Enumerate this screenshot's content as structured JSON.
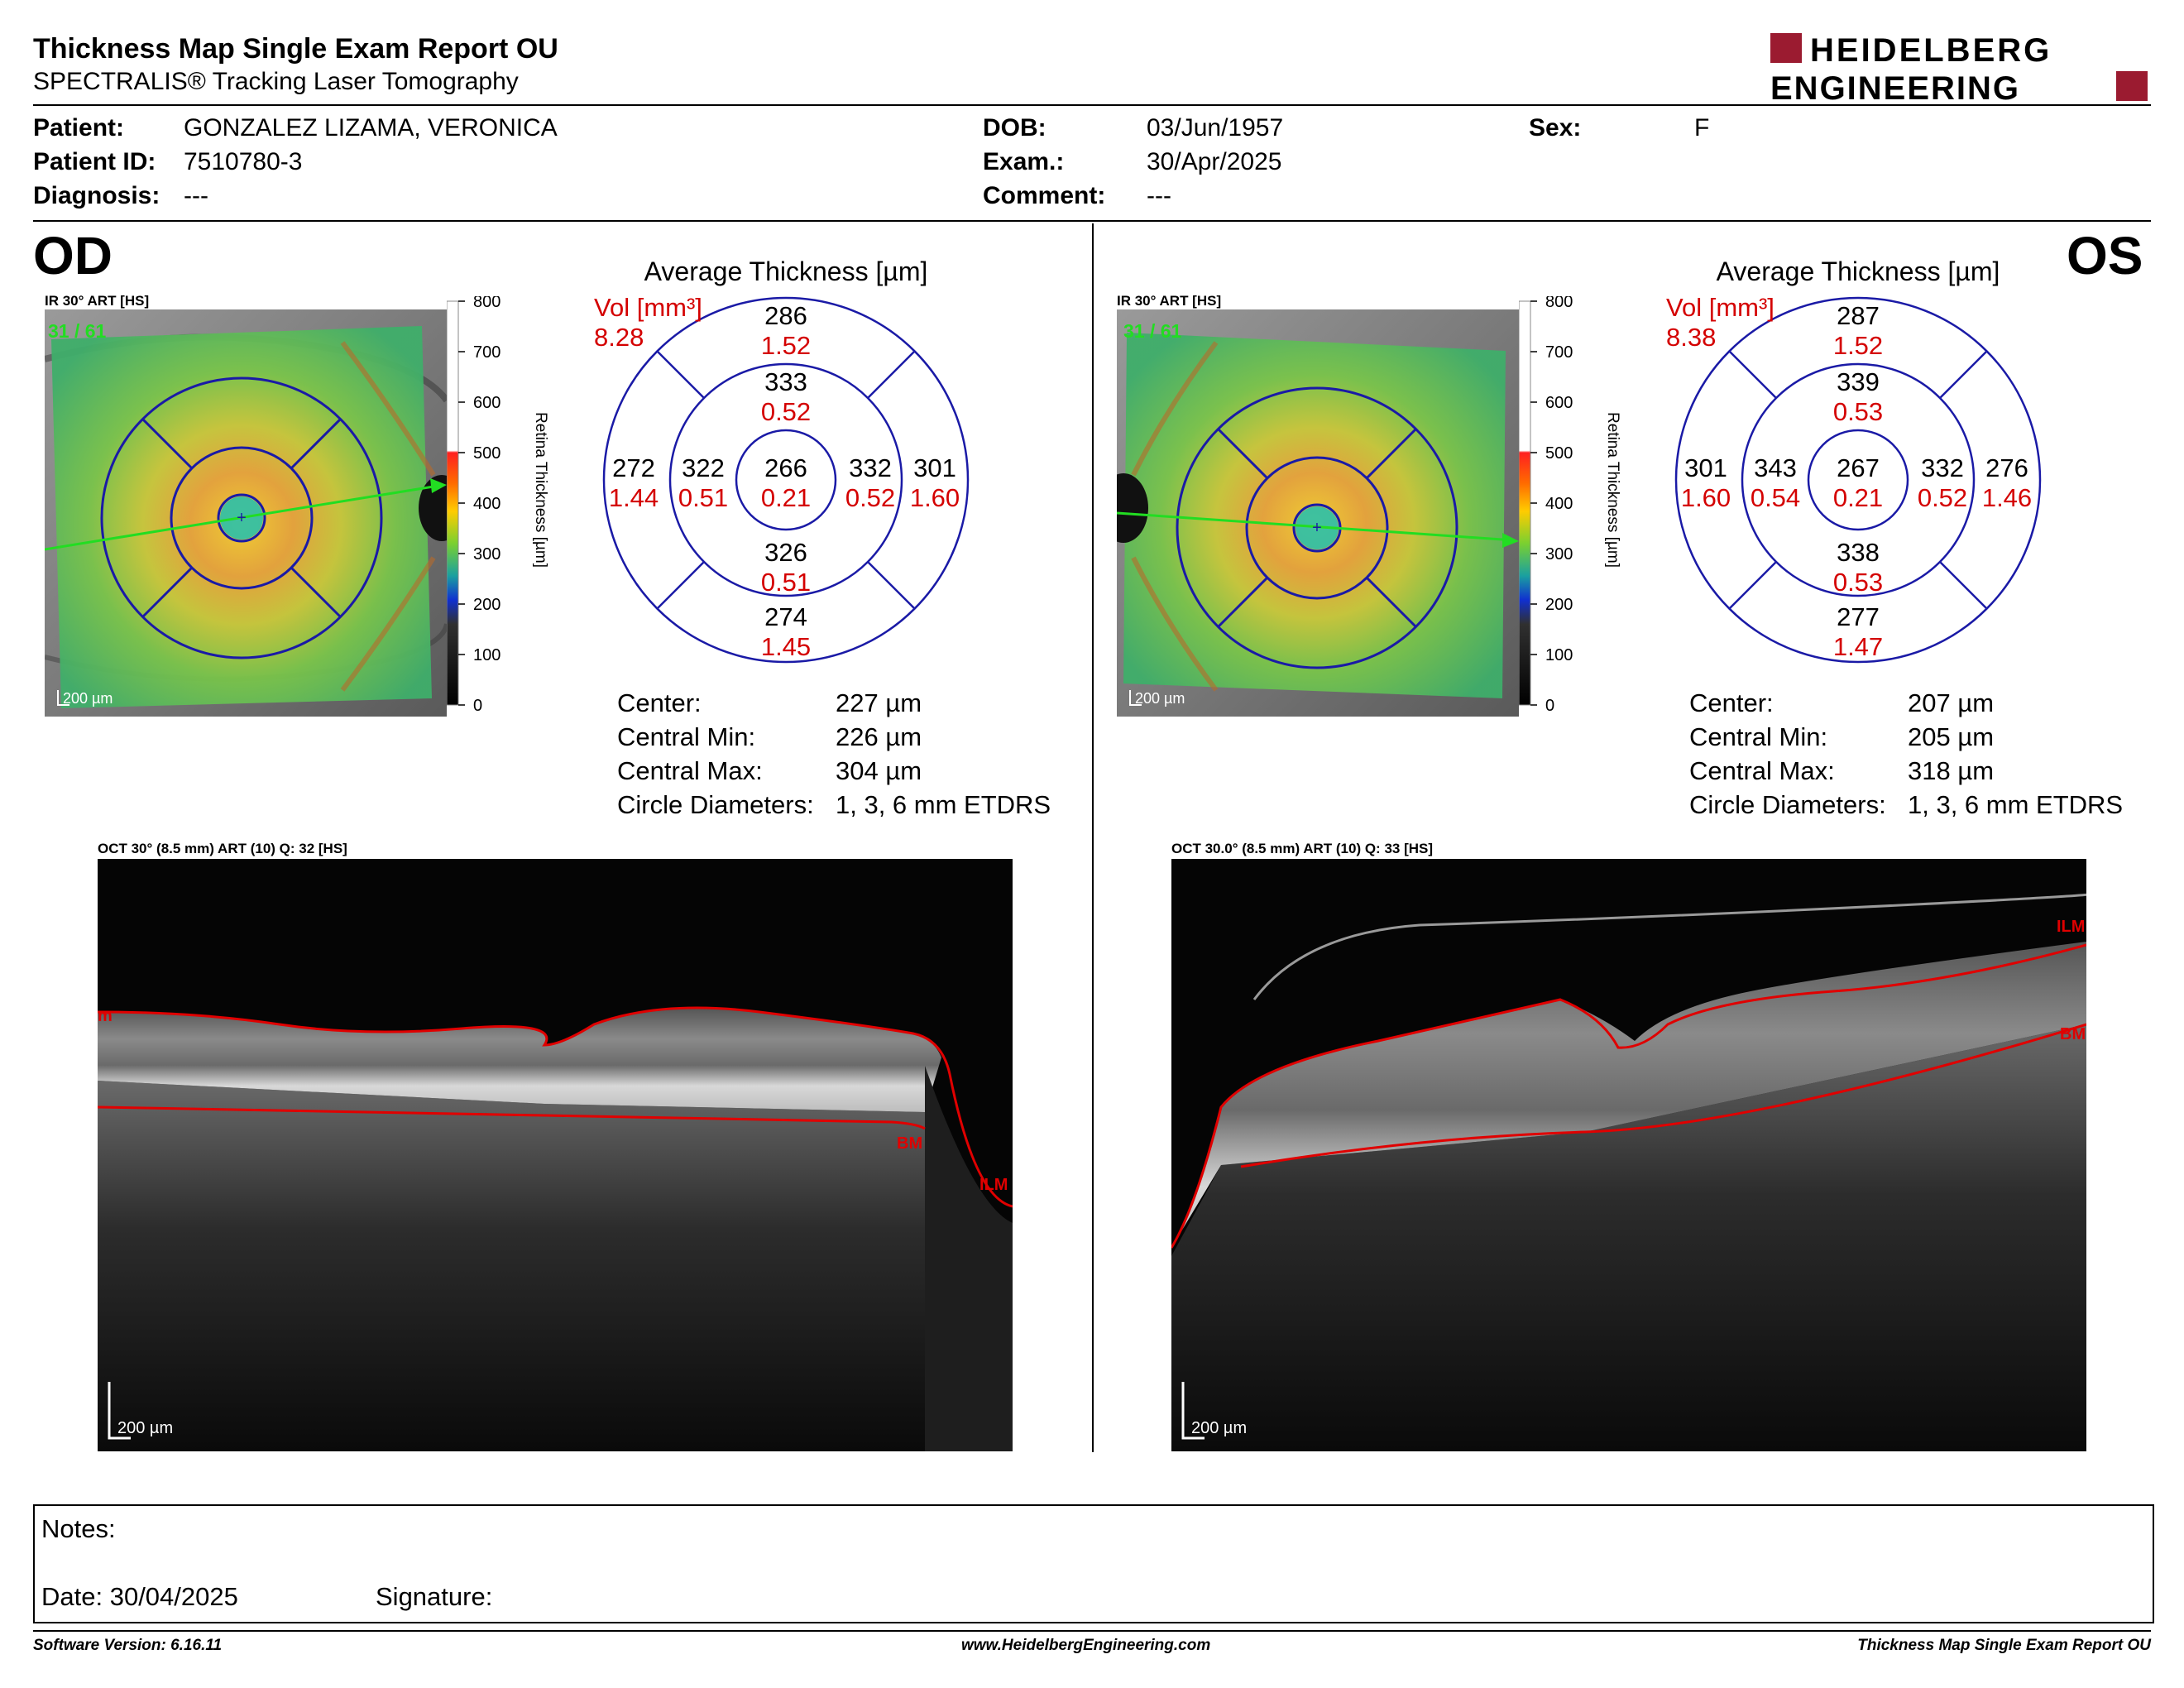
{
  "report": {
    "title": "Thickness Map Single Exam Report OU",
    "subtitle": "SPECTRALIS® Tracking Laser Tomography",
    "logo_line1": "HEIDELBERG",
    "logo_line2": "ENGINEERING"
  },
  "patient": {
    "patient_label": "Patient:",
    "patient_value": "GONZALEZ LIZAMA, VERONICA",
    "id_label": "Patient ID:",
    "id_value": "7510780-3",
    "diagnosis_label": "Diagnosis:",
    "diagnosis_value": "---",
    "dob_label": "DOB:",
    "dob_value": "03/Jun/1957",
    "exam_label": "Exam.:",
    "exam_value": "30/Apr/2025",
    "comment_label": "Comment:",
    "comment_value": "---",
    "sex_label": "Sex:",
    "sex_value": "F"
  },
  "scale": {
    "ticks": [
      "800",
      "700",
      "600",
      "500",
      "400",
      "300",
      "200",
      "100",
      "0"
    ],
    "axis_label": "Retina Thickness [µm]"
  },
  "od": {
    "eye": "OD",
    "fundus_label": "IR 30° ART [HS]",
    "frame": "31 / 61",
    "fundus_scalebar": "200 µm",
    "avg_title": "Average Thickness [µm]",
    "vol_label": "Vol [mm³]",
    "vol_value": "8.28",
    "etdrs": {
      "center": [
        "266",
        "0.21"
      ],
      "inner_sup": [
        "333",
        "0.52"
      ],
      "inner_inf": [
        "326",
        "0.51"
      ],
      "inner_left": [
        "322",
        "0.51"
      ],
      "inner_right": [
        "332",
        "0.52"
      ],
      "outer_sup": [
        "286",
        "1.52"
      ],
      "outer_inf": [
        "274",
        "1.45"
      ],
      "outer_left": [
        "272",
        "1.44"
      ],
      "outer_right": [
        "301",
        "1.60"
      ]
    },
    "stats": [
      {
        "label": "Center:",
        "value": "227 µm"
      },
      {
        "label": "Central Min:",
        "value": "226 µm"
      },
      {
        "label": "Central Max:",
        "value": "304 µm"
      },
      {
        "label": "Circle Diameters:",
        "value": "1, 3, 6 mm ETDRS"
      }
    ],
    "oct_label": "OCT 30° (8.5 mm) ART (10) Q: 32 [HS]",
    "oct_scalebar": "200 µm",
    "ilm_tag": "ILM",
    "bm_tag": "BM",
    "ilm_left_tag": "m"
  },
  "os": {
    "eye": "OS",
    "fundus_label": "IR 30° ART [HS]",
    "frame": "31 / 61",
    "fundus_scalebar": "200 µm",
    "avg_title": "Average Thickness [µm]",
    "vol_label": "Vol [mm³]",
    "vol_value": "8.38",
    "etdrs": {
      "center": [
        "267",
        "0.21"
      ],
      "inner_sup": [
        "339",
        "0.53"
      ],
      "inner_inf": [
        "338",
        "0.53"
      ],
      "inner_left": [
        "343",
        "0.54"
      ],
      "inner_right": [
        "332",
        "0.52"
      ],
      "outer_sup": [
        "287",
        "1.52"
      ],
      "outer_inf": [
        "277",
        "1.47"
      ],
      "outer_left": [
        "301",
        "1.60"
      ],
      "outer_right": [
        "276",
        "1.46"
      ]
    },
    "stats": [
      {
        "label": "Center:",
        "value": "207 µm"
      },
      {
        "label": "Central Min:",
        "value": "205 µm"
      },
      {
        "label": "Central Max:",
        "value": "318 µm"
      },
      {
        "label": "Circle Diameters:",
        "value": "1, 3, 6 mm ETDRS"
      }
    ],
    "oct_label": "OCT 30.0° (8.5 mm) ART (10) Q: 33 [HS]",
    "oct_scalebar": "200 µm",
    "ilm_tag": "ILM",
    "bm_tag": "BM"
  },
  "notes": {
    "notes_label": "Notes:",
    "date_label": "Date: 30/04/2025",
    "signature_label": "Signature:"
  },
  "footer": {
    "software": "Software Version: 6.16.11",
    "website": "www.HeidelbergEngineering.com",
    "report_name": "Thickness Map Single Exam Report OU"
  },
  "colors": {
    "grid_blue": "#1a1aa6",
    "value_red": "#d40000",
    "frame_green": "#22dd22",
    "segment_red": "#e00000",
    "logo_red": "#9b1b30"
  }
}
